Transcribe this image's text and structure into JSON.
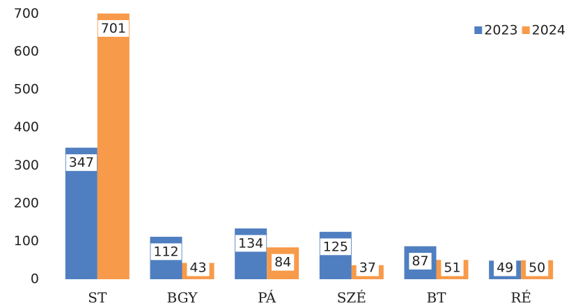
{
  "chart_data": {
    "type": "bar",
    "categories": [
      "ST",
      "BGY",
      "PÁ",
      "SZÉ",
      "BT",
      "RÉ"
    ],
    "series": [
      {
        "name": "2023",
        "color": "#4f7fc0",
        "values": [
          347,
          112,
          134,
          125,
          87,
          49
        ]
      },
      {
        "name": "2024",
        "color": "#f79a4a",
        "values": [
          701,
          43,
          84,
          37,
          51,
          50
        ]
      }
    ],
    "ylim": [
      0,
      700
    ],
    "yticks": [
      0,
      100,
      200,
      300,
      400,
      500,
      600,
      700
    ],
    "grid": false,
    "legend": "top-right"
  }
}
